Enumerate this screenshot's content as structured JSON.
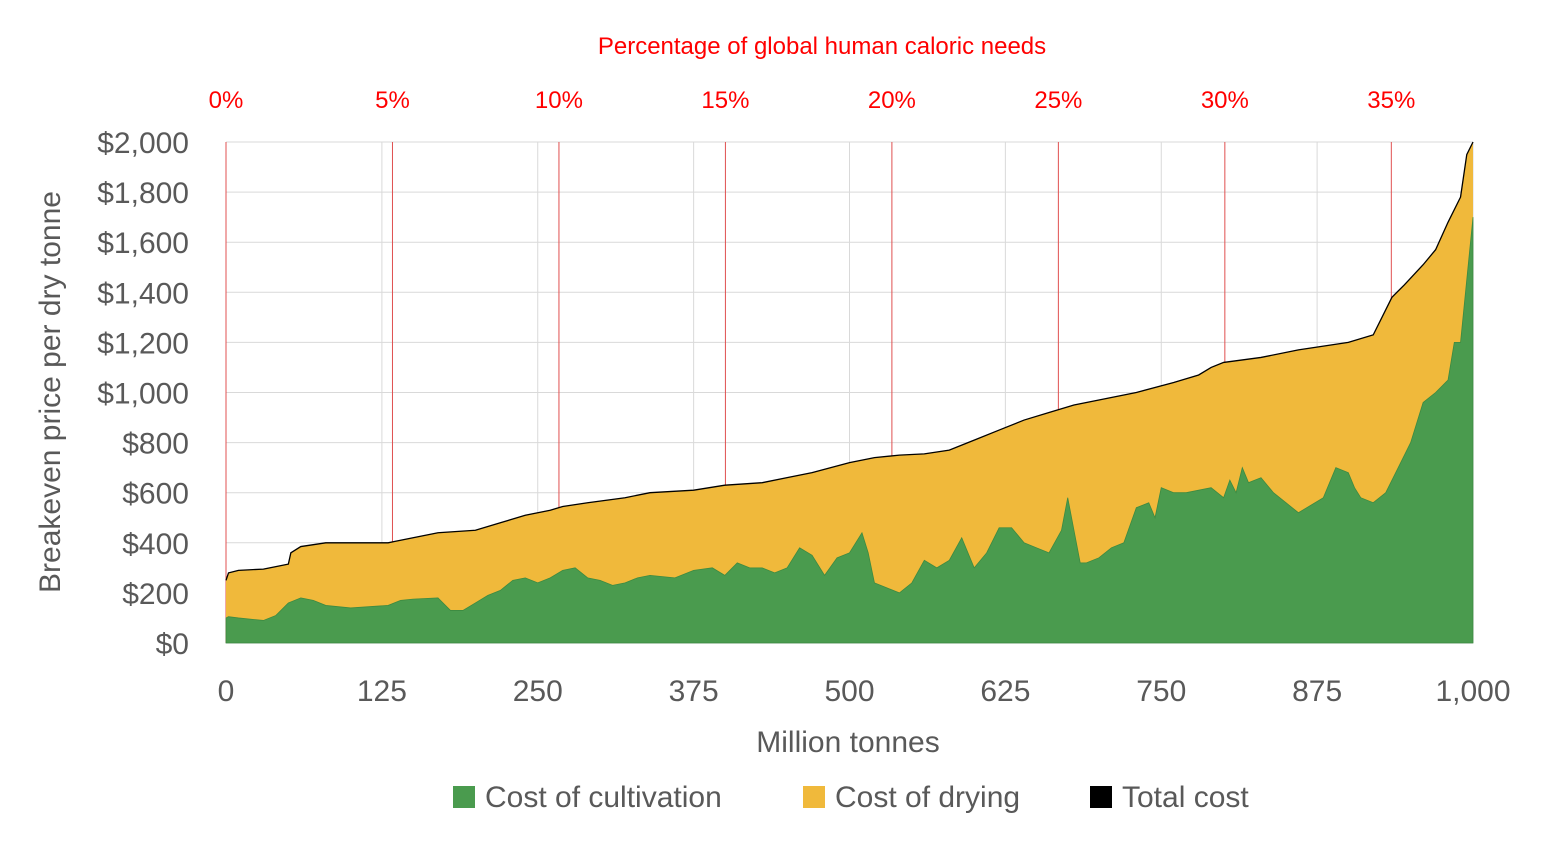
{
  "chart_data": {
    "type": "area",
    "title": "",
    "xlabel": "Million tonnes",
    "ylabel": "Breakeven price per dry tonne",
    "secondary_x_title": "Percentage of global human caloric needs",
    "xlim": [
      0,
      1000
    ],
    "ylim": [
      0,
      2000
    ],
    "x_ticks": [
      0,
      125,
      250,
      375,
      500,
      625,
      750,
      875,
      1000
    ],
    "x_tick_labels": [
      "0",
      "125",
      "250",
      "375",
      "500",
      "625",
      "750",
      "875",
      "1,000"
    ],
    "y_ticks": [
      0,
      200,
      400,
      600,
      800,
      1000,
      1200,
      1400,
      1600,
      1800,
      2000
    ],
    "y_tick_labels": [
      "$0",
      "$200",
      "$400",
      "$600",
      "$800",
      "$1,000",
      "$1,200",
      "$1,400",
      "$1,600",
      "$1,800",
      "$2,000"
    ],
    "secondary_x_ticks": [
      0,
      133.5,
      267,
      400.5,
      534,
      667.5,
      801,
      934.5
    ],
    "secondary_x_tick_labels": [
      "0%",
      "5%",
      "10%",
      "15%",
      "20%",
      "25%",
      "30%",
      "35%"
    ],
    "grid": true,
    "legend_position": "bottom",
    "colors": {
      "cultivation": "#4a9b4e",
      "drying": "#f0b93b",
      "total": "#000000",
      "pct_lines": "#e05050",
      "grid": "#d9d9d9"
    },
    "legend": [
      "Cost of cultivation",
      "Cost of drying",
      "Total cost"
    ],
    "series": [
      {
        "name": "Total cost",
        "x": [
          0,
          2,
          10,
          30,
          40,
          50,
          52,
          60,
          80,
          100,
          130,
          135,
          150,
          170,
          200,
          220,
          240,
          260,
          270,
          290,
          320,
          340,
          375,
          400,
          430,
          450,
          470,
          500,
          520,
          540,
          560,
          580,
          600,
          620,
          640,
          660,
          680,
          700,
          730,
          760,
          780,
          790,
          800,
          830,
          860,
          900,
          920,
          935,
          945,
          960,
          970,
          980,
          990,
          995,
          1000
        ],
        "values": [
          250,
          280,
          290,
          295,
          305,
          315,
          360,
          385,
          400,
          400,
          400,
          405,
          420,
          440,
          450,
          480,
          510,
          530,
          545,
          560,
          580,
          600,
          610,
          630,
          640,
          660,
          680,
          720,
          740,
          750,
          755,
          770,
          810,
          850,
          890,
          920,
          950,
          970,
          1000,
          1040,
          1070,
          1100,
          1120,
          1140,
          1170,
          1200,
          1230,
          1380,
          1430,
          1510,
          1570,
          1680,
          1780,
          1950,
          2000
        ]
      },
      {
        "name": "Cost of cultivation",
        "x": [
          0,
          2,
          10,
          30,
          40,
          50,
          60,
          70,
          80,
          100,
          130,
          140,
          150,
          170,
          180,
          190,
          200,
          210,
          220,
          230,
          240,
          250,
          260,
          270,
          280,
          290,
          300,
          310,
          320,
          330,
          340,
          360,
          375,
          390,
          400,
          410,
          420,
          430,
          440,
          450,
          460,
          470,
          480,
          490,
          500,
          510,
          515,
          520,
          530,
          540,
          550,
          560,
          570,
          580,
          590,
          600,
          610,
          620,
          630,
          640,
          650,
          660,
          670,
          675,
          680,
          685,
          690,
          700,
          710,
          720,
          730,
          740,
          745,
          750,
          760,
          770,
          780,
          790,
          800,
          805,
          810,
          815,
          820,
          830,
          840,
          850,
          860,
          870,
          880,
          890,
          900,
          905,
          910,
          920,
          930,
          940,
          950,
          960,
          970,
          980,
          985,
          990,
          995,
          1000
        ],
        "values": [
          100,
          105,
          100,
          90,
          110,
          160,
          180,
          170,
          150,
          140,
          150,
          170,
          175,
          180,
          130,
          130,
          160,
          190,
          210,
          250,
          260,
          240,
          260,
          290,
          300,
          260,
          250,
          230,
          240,
          260,
          270,
          260,
          290,
          300,
          270,
          320,
          300,
          300,
          280,
          300,
          380,
          350,
          270,
          340,
          360,
          440,
          360,
          240,
          220,
          200,
          240,
          330,
          300,
          330,
          420,
          300,
          360,
          460,
          460,
          400,
          380,
          360,
          450,
          580,
          450,
          320,
          320,
          340,
          380,
          400,
          540,
          560,
          500,
          620,
          600,
          600,
          610,
          620,
          580,
          650,
          600,
          700,
          640,
          660,
          600,
          560,
          520,
          550,
          580,
          700,
          680,
          620,
          580,
          560,
          600,
          700,
          800,
          960,
          1000,
          1050,
          1200,
          1200,
          1450,
          1700
        ]
      }
    ]
  }
}
